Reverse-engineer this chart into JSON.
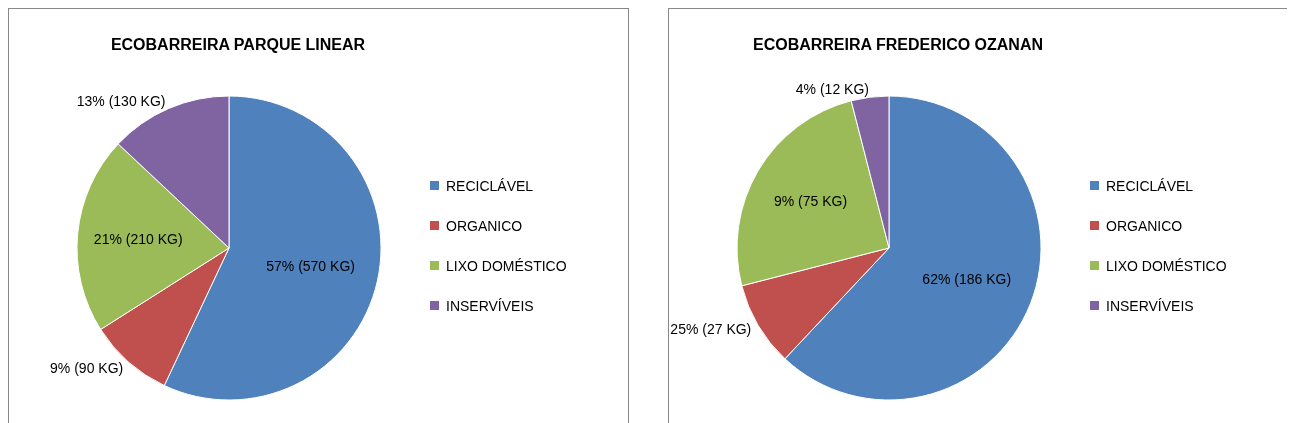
{
  "chart_data": [
    {
      "type": "pie",
      "title": "ECOBARREIRA PARQUE LINEAR",
      "categories": [
        "RECICLÁVEL",
        "ORGANICO",
        "LIXO DOMÉSTICO",
        "INSERVÍVEIS"
      ],
      "values": [
        570,
        90,
        210,
        130
      ],
      "colors": [
        "#4f81bd",
        "#c0504d",
        "#9bbb59",
        "#8064a2"
      ],
      "value_labels": [
        "57% (570 KG)",
        "9% (90 KG)",
        "21% (210 KG)",
        "13% (130 KG)"
      ],
      "legend": "right"
    },
    {
      "type": "pie",
      "title": "ECOBARREIRA FREDERICO OZANAN",
      "categories": [
        "RECICLÁVEL",
        "ORGANICO",
        "LIXO DOMÉSTICO",
        "INSERVÍVEIS"
      ],
      "values": [
        186,
        27,
        75,
        12
      ],
      "colors": [
        "#4f81bd",
        "#c0504d",
        "#9bbb59",
        "#8064a2"
      ],
      "value_labels": [
        "62% (186 KG)",
        "25% (27 KG)",
        "9% (75 KG)",
        "4% (12 KG)"
      ],
      "legend": "right"
    }
  ]
}
